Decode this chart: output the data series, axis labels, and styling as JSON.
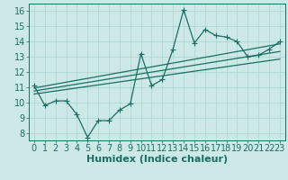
{
  "xlabel": "Humidex (Indice chaleur)",
  "xlim": [
    -0.5,
    23.5
  ],
  "ylim": [
    7.5,
    16.5
  ],
  "xticks": [
    0,
    1,
    2,
    3,
    4,
    5,
    6,
    7,
    8,
    9,
    10,
    11,
    12,
    13,
    14,
    15,
    16,
    17,
    18,
    19,
    20,
    21,
    22,
    23
  ],
  "yticks": [
    8,
    9,
    10,
    11,
    12,
    13,
    14,
    15,
    16
  ],
  "bg_color": "#cce9e7",
  "grid_color": "#aad4d0",
  "line_color": "#1a6e64",
  "data_x": [
    0,
    1,
    2,
    3,
    4,
    5,
    6,
    7,
    8,
    9,
    10,
    11,
    12,
    13,
    14,
    15,
    16,
    17,
    18,
    19,
    20,
    21,
    22,
    23
  ],
  "data_y": [
    11.1,
    9.8,
    10.1,
    10.1,
    9.2,
    7.7,
    8.8,
    8.8,
    9.5,
    9.9,
    13.2,
    11.1,
    11.5,
    13.5,
    16.1,
    13.9,
    14.8,
    14.4,
    14.3,
    14.0,
    13.0,
    13.1,
    13.5,
    14.0
  ],
  "reg_lines": [
    {
      "x": [
        0,
        23
      ],
      "y": [
        10.55,
        12.85
      ]
    },
    {
      "x": [
        0,
        23
      ],
      "y": [
        10.75,
        13.35
      ]
    },
    {
      "x": [
        0,
        23
      ],
      "y": [
        10.95,
        13.85
      ]
    }
  ],
  "line_width": 0.9,
  "font_size": 7
}
